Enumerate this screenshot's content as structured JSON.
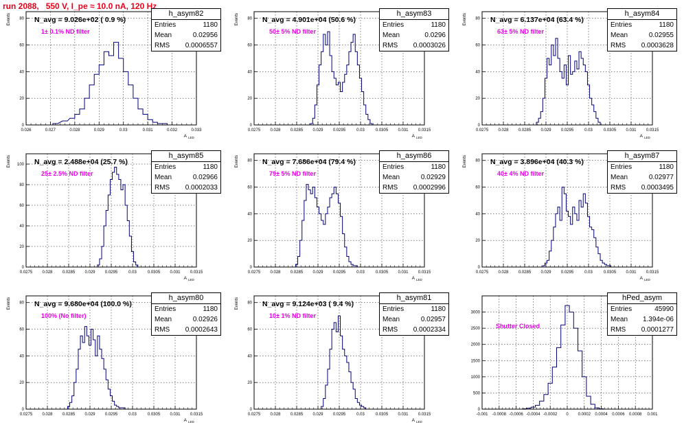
{
  "page": {
    "title": "run 2088,   550 V, I_pe ≈ 10.0 nA, 120 Hz",
    "colors": {
      "title": "#e8001a",
      "annotation": "#e600e6",
      "histogram": "#00007a",
      "grid": "#000000"
    }
  },
  "chart_data": [
    {
      "type": "histogram",
      "name": "h_asym82",
      "summary": "N_avg = 9.026e+02 ( 0.9 %)",
      "annotation": "1± 0.1% ND filter",
      "stats": [
        [
          "Entries",
          "1180"
        ],
        [
          "Mean",
          "0.02956"
        ],
        [
          "RMS",
          "0.0006557"
        ]
      ],
      "xlabel": "A",
      "xlabel_sub": "LED",
      "ylabel": "Events",
      "xlim": [
        0.026,
        0.033
      ],
      "ylim": [
        0,
        85
      ],
      "xticks": [
        "0.026",
        "0.027",
        "0.028",
        "0.029",
        "0.03",
        "0.031",
        "0.032",
        "0.033"
      ],
      "yticks": [
        0,
        20,
        40,
        60,
        80
      ],
      "grid": true,
      "centers": [
        0.0272,
        0.0276,
        0.0279,
        0.0281,
        0.0283,
        0.0285,
        0.0287,
        0.0289,
        0.0291,
        0.0293,
        0.0295,
        0.0297,
        0.0299,
        0.0301,
        0.0303,
        0.0305,
        0.0307,
        0.0309,
        0.0311,
        0.0313,
        0.0315,
        0.0317,
        0.0319
      ],
      "values": [
        1,
        3,
        5,
        8,
        12,
        20,
        30,
        38,
        45,
        55,
        52,
        62,
        50,
        40,
        30,
        20,
        12,
        8,
        4,
        2,
        1,
        1,
        0
      ]
    },
    {
      "type": "histogram",
      "name": "h_asym83",
      "summary": "N_avg = 4.901e+04 (50.6 %)",
      "annotation": "50± 5% ND filter",
      "stats": [
        [
          "Entries",
          "1180"
        ],
        [
          "Mean",
          "0.0296"
        ],
        [
          "RMS",
          "0.0003026"
        ]
      ],
      "xlabel": "A",
      "xlabel_sub": "LED",
      "ylabel": "Events",
      "xlim": [
        0.0275,
        0.0315
      ],
      "ylim": [
        0,
        85
      ],
      "xticks": [
        "0.0275",
        "0.028",
        "0.0285",
        "0.029",
        "0.0295",
        "0.03",
        "0.0305",
        "0.031",
        "0.0315"
      ],
      "yticks": [
        0,
        20,
        40,
        60,
        80
      ],
      "grid": true,
      "centers": [
        0.02885,
        0.0289,
        0.02895,
        0.029,
        0.02905,
        0.0291,
        0.02915,
        0.0292,
        0.02925,
        0.0293,
        0.02935,
        0.0294,
        0.02945,
        0.0295,
        0.02955,
        0.0296,
        0.02965,
        0.0297,
        0.02975,
        0.0298,
        0.02985,
        0.0299,
        0.02995,
        0.03,
        0.03005,
        0.0301,
        0.03015,
        0.0302,
        0.03025
      ],
      "values": [
        1,
        5,
        15,
        30,
        45,
        55,
        68,
        60,
        70,
        52,
        40,
        35,
        30,
        32,
        25,
        32,
        38,
        45,
        55,
        62,
        68,
        55,
        45,
        35,
        25,
        15,
        8,
        4,
        1
      ]
    },
    {
      "type": "histogram",
      "name": "h_asym84",
      "summary": "N_avg = 6.137e+04 (63.4 %)",
      "annotation": "63± 5% ND filter",
      "stats": [
        [
          "Entries",
          "1180"
        ],
        [
          "Mean",
          "0.02955"
        ],
        [
          "RMS",
          "0.0003628"
        ]
      ],
      "xlabel": "A",
      "xlabel_sub": "LED",
      "ylabel": "Events",
      "xlim": [
        0.0275,
        0.0315
      ],
      "ylim": [
        0,
        85
      ],
      "xticks": [
        "0.0275",
        "0.028",
        "0.0285",
        "0.029",
        "0.0295",
        "0.03",
        "0.0305",
        "0.031",
        "0.0315"
      ],
      "yticks": [
        0,
        20,
        40,
        60,
        80
      ],
      "grid": true,
      "centers": [
        0.0288,
        0.02885,
        0.0289,
        0.02895,
        0.029,
        0.02905,
        0.0291,
        0.02915,
        0.0292,
        0.02925,
        0.0293,
        0.02935,
        0.0294,
        0.02945,
        0.0295,
        0.02955,
        0.0296,
        0.02965,
        0.0297,
        0.02975,
        0.0298,
        0.02985,
        0.0299,
        0.02995,
        0.03,
        0.03005,
        0.0301,
        0.03015,
        0.0302,
        0.03025
      ],
      "values": [
        2,
        5,
        10,
        20,
        35,
        50,
        45,
        60,
        52,
        65,
        50,
        40,
        35,
        45,
        30,
        52,
        38,
        40,
        48,
        42,
        55,
        50,
        45,
        40,
        30,
        20,
        15,
        10,
        5,
        2
      ]
    },
    {
      "type": "histogram",
      "name": "h_asym85",
      "summary": "N_avg = 2.488e+04 (25.7 %)",
      "annotation": "25± 2.5% ND filter",
      "stats": [
        [
          "Entries",
          "1180"
        ],
        [
          "Mean",
          "0.02966"
        ],
        [
          "RMS",
          "0.0002033"
        ]
      ],
      "xlabel": "A",
      "xlabel_sub": "LED",
      "ylabel": "Events",
      "xlim": [
        0.0275,
        0.0315
      ],
      "ylim": [
        0,
        110
      ],
      "xticks": [
        "0.0275",
        "0.028",
        "0.0285",
        "0.029",
        "0.0295",
        "0.03",
        "0.0305",
        "0.031",
        "0.0315"
      ],
      "yticks": [
        0,
        20,
        40,
        60,
        80,
        100
      ],
      "grid": true,
      "centers": [
        0.0292,
        0.02925,
        0.0293,
        0.02935,
        0.0294,
        0.02945,
        0.0295,
        0.02955,
        0.0296,
        0.02965,
        0.0297,
        0.02975,
        0.0298,
        0.02985,
        0.0299,
        0.02995,
        0.03,
        0.03005,
        0.0301
      ],
      "values": [
        2,
        8,
        20,
        40,
        55,
        70,
        85,
        92,
        97,
        90,
        85,
        75,
        80,
        60,
        45,
        30,
        15,
        5,
        2
      ]
    },
    {
      "type": "histogram",
      "name": "h_asym86",
      "summary": "N_avg = 7.686e+04 (79.4 %)",
      "annotation": "79± 5% ND filter",
      "stats": [
        [
          "Entries",
          "1180"
        ],
        [
          "Mean",
          "0.02929"
        ],
        [
          "RMS",
          "0.0002996"
        ]
      ],
      "xlabel": "A",
      "xlabel_sub": "LED",
      "ylabel": "Events",
      "xlim": [
        0.0275,
        0.0315
      ],
      "ylim": [
        0,
        85
      ],
      "xticks": [
        "0.0275",
        "0.028",
        "0.0285",
        "0.029",
        "0.0295",
        "0.03",
        "0.0305",
        "0.031",
        "0.0315"
      ],
      "yticks": [
        0,
        20,
        40,
        60,
        80
      ],
      "grid": true,
      "centers": [
        0.0285,
        0.02855,
        0.0286,
        0.02865,
        0.0287,
        0.02875,
        0.0288,
        0.02885,
        0.0289,
        0.02895,
        0.029,
        0.02905,
        0.0291,
        0.02915,
        0.0292,
        0.02925,
        0.0293,
        0.02935,
        0.0294,
        0.02945,
        0.0295,
        0.02955,
        0.0296,
        0.02965,
        0.0297,
        0.02975,
        0.0298,
        0.02985,
        0.0299
      ],
      "values": [
        2,
        8,
        20,
        35,
        50,
        62,
        58,
        55,
        60,
        52,
        45,
        40,
        35,
        32,
        40,
        45,
        52,
        55,
        60,
        55,
        48,
        38,
        25,
        15,
        8,
        4,
        2,
        1,
        1
      ]
    },
    {
      "type": "histogram",
      "name": "h_asym87",
      "summary": "N_avg = 3.896e+04 (40.3 %)",
      "annotation": "40± 4% ND filter",
      "stats": [
        [
          "Entries",
          "1180"
        ],
        [
          "Mean",
          "0.02977"
        ],
        [
          "RMS",
          "0.0003495"
        ]
      ],
      "xlabel": "A",
      "xlabel_sub": "LED",
      "ylabel": "Events",
      "xlim": [
        0.0275,
        0.0315
      ],
      "ylim": [
        0,
        85
      ],
      "xticks": [
        "0.0275",
        "0.028",
        "0.0285",
        "0.029",
        "0.0295",
        "0.03",
        "0.0305",
        "0.031",
        "0.0315"
      ],
      "yticks": [
        0,
        20,
        40,
        60,
        80
      ],
      "grid": true,
      "centers": [
        0.02895,
        0.029,
        0.02905,
        0.0291,
        0.02915,
        0.0292,
        0.02925,
        0.0293,
        0.02935,
        0.0294,
        0.02945,
        0.0295,
        0.02955,
        0.0296,
        0.02965,
        0.0297,
        0.02975,
        0.0298,
        0.02985,
        0.0299,
        0.02995,
        0.03,
        0.03005,
        0.0301,
        0.03015,
        0.0302,
        0.03025,
        0.0303,
        0.03035,
        0.0304,
        0.03045,
        0.0305
      ],
      "values": [
        1,
        3,
        5,
        12,
        20,
        30,
        40,
        45,
        35,
        60,
        55,
        42,
        38,
        32,
        45,
        40,
        35,
        50,
        45,
        55,
        48,
        38,
        30,
        28,
        22,
        15,
        10,
        5,
        3,
        2,
        1,
        1
      ]
    },
    {
      "type": "histogram",
      "name": "h_asym80",
      "summary": "N_avg = 9.680e+04 (100.0 %)",
      "annotation": "100% (No filter)",
      "stats": [
        [
          "Entries",
          "1180"
        ],
        [
          "Mean",
          "0.02926"
        ],
        [
          "RMS",
          "0.0002643"
        ]
      ],
      "xlabel": "A",
      "xlabel_sub": "LED",
      "ylabel": "Events",
      "xlim": [
        0.0275,
        0.0315
      ],
      "ylim": [
        0,
        85
      ],
      "xticks": [
        "0.0275",
        "0.028",
        "0.0285",
        "0.029",
        "0.0295",
        "0.03",
        "0.0305",
        "0.031",
        "0.0315"
      ],
      "yticks": [
        0,
        20,
        40,
        60,
        80
      ],
      "grid": true,
      "centers": [
        0.0285,
        0.02855,
        0.0286,
        0.02865,
        0.0287,
        0.02875,
        0.0288,
        0.02885,
        0.0289,
        0.02895,
        0.029,
        0.02905,
        0.0291,
        0.02915,
        0.0292,
        0.02925,
        0.0293,
        0.02935,
        0.0294,
        0.02945,
        0.0295,
        0.02955,
        0.0296,
        0.02965,
        0.0297,
        0.02975,
        0.0298
      ],
      "values": [
        2,
        5,
        10,
        20,
        30,
        45,
        55,
        50,
        62,
        55,
        48,
        60,
        52,
        40,
        55,
        45,
        38,
        30,
        22,
        15,
        10,
        6,
        3,
        2,
        1,
        1,
        1
      ]
    },
    {
      "type": "histogram",
      "name": "h_asym81",
      "summary": "N_avg = 9.124e+03 ( 9.4 %)",
      "annotation": "10± 1% ND filter",
      "stats": [
        [
          "Entries",
          "1180"
        ],
        [
          "Mean",
          "0.02957"
        ],
        [
          "RMS",
          "0.0002334"
        ]
      ],
      "xlabel": "A",
      "xlabel_sub": "LED",
      "ylabel": "Events",
      "xlim": [
        0.0275,
        0.0315
      ],
      "ylim": [
        0,
        85
      ],
      "xticks": [
        "0.0275",
        "0.028",
        "0.0285",
        "0.029",
        "0.0295",
        "0.03",
        "0.0305",
        "0.031",
        "0.0315"
      ],
      "yticks": [
        0,
        20,
        40,
        60,
        80
      ],
      "grid": true,
      "centers": [
        0.0291,
        0.02915,
        0.0292,
        0.02925,
        0.0293,
        0.02935,
        0.0294,
        0.02945,
        0.0295,
        0.02955,
        0.0296,
        0.02965,
        0.0297,
        0.02975,
        0.0298,
        0.02985,
        0.0299,
        0.02995,
        0.03,
        0.03005,
        0.0301
      ],
      "values": [
        2,
        8,
        18,
        30,
        45,
        60,
        65,
        58,
        70,
        55,
        45,
        40,
        35,
        28,
        20,
        15,
        8,
        5,
        3,
        2,
        1
      ]
    },
    {
      "type": "histogram",
      "name": "hPed_asym",
      "summary": "",
      "annotation": "Shutter Closed",
      "stats": [
        [
          "Entries",
          "45990"
        ],
        [
          "Mean",
          "1.394e-06"
        ],
        [
          "RMS",
          "0.0001277"
        ]
      ],
      "xlabel": "",
      "xlabel_sub": "",
      "ylabel": "",
      "xlim": [
        -0.001,
        0.001
      ],
      "ylim": [
        0,
        3500
      ],
      "xticks": [
        "-0.001",
        "-0.0008",
        "-0.0006",
        "-0.0004",
        "-0.0002",
        "0",
        "0.0002",
        "0.0004",
        "0.0006",
        "0.0008",
        "0.001"
      ],
      "yticks": [
        0,
        500,
        1000,
        1500,
        2000,
        2500,
        3000
      ],
      "grid": true,
      "centers": [
        -0.0005,
        -0.00045,
        -0.0004,
        -0.00035,
        -0.0003,
        -0.00025,
        -0.0002,
        -0.00015,
        -0.0001,
        -5e-05,
        0,
        5e-05,
        0.0001,
        0.00015,
        0.0002,
        0.00025,
        0.0003,
        0.00035,
        0.0004
      ],
      "values": [
        10,
        30,
        60,
        120,
        250,
        450,
        800,
        1300,
        1900,
        2600,
        3200,
        3000,
        2500,
        1800,
        1000,
        400,
        150,
        40,
        10
      ]
    }
  ]
}
